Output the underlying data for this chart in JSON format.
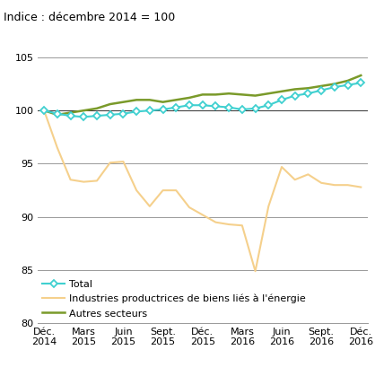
{
  "title": "Indice : décembre 2014 = 100",
  "ylim": [
    80,
    106.5
  ],
  "yticks": [
    80,
    85,
    90,
    95,
    100,
    105
  ],
  "xtick_labels": [
    "Déc.\n2014",
    "Mars\n2015",
    "Juin\n2015",
    "Sept.\n2015",
    "Déc.\n2015",
    "Mars\n2016",
    "Juin\n2016",
    "Sept.\n2016",
    "Déc.\n2016"
  ],
  "xtick_positions": [
    0,
    3,
    6,
    9,
    12,
    15,
    18,
    21,
    24
  ],
  "total": [
    100.0,
    99.7,
    99.5,
    99.4,
    99.5,
    99.6,
    99.7,
    99.9,
    100.0,
    100.1,
    100.3,
    100.5,
    100.5,
    100.4,
    100.3,
    100.1,
    100.2,
    100.5,
    101.0,
    101.4,
    101.6,
    101.9,
    102.2,
    102.4,
    102.6
  ],
  "energy": [
    100.0,
    96.5,
    93.5,
    93.3,
    93.4,
    95.1,
    95.2,
    92.5,
    91.0,
    92.5,
    92.5,
    90.9,
    90.2,
    89.5,
    89.3,
    89.2,
    84.9,
    91.0,
    94.7,
    93.5,
    94.0,
    93.2,
    93.0,
    93.0,
    92.8
  ],
  "autres": [
    100.0,
    99.6,
    99.8,
    100.0,
    100.2,
    100.6,
    100.8,
    101.0,
    101.0,
    100.8,
    101.0,
    101.2,
    101.5,
    101.5,
    101.6,
    101.5,
    101.4,
    101.6,
    101.8,
    102.0,
    102.1,
    102.3,
    102.5,
    102.8,
    103.3
  ],
  "total_color": "#40D0D0",
  "energy_color": "#F5D08C",
  "autres_color": "#7A9A2A",
  "grid_color": "#999999",
  "baseline_color": "#333333",
  "bg_color": "#FFFFFF",
  "legend_total": "Total",
  "legend_energy": "Industries productrices de biens liés à l'énergie",
  "legend_autres": "Autres secteurs",
  "title_fontsize": 9,
  "tick_fontsize": 8,
  "legend_fontsize": 8
}
